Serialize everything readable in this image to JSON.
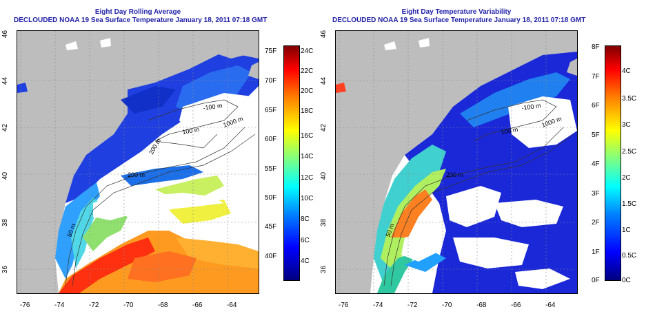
{
  "left_panel": {
    "title_line1": "Eight Day Rolling Average",
    "title_line2": "DECLOUDED NOAA 19 Sea Surface Temperature January 18, 2011 07:18 GMT",
    "x_ticks": [
      "-76",
      "-74",
      "-72",
      "-70",
      "-68",
      "-66",
      "-64"
    ],
    "y_ticks": [
      "36",
      "38",
      "40",
      "42",
      "44",
      "46"
    ],
    "contours": [
      "-100 m",
      "1000 m",
      "200 m",
      "100 m",
      "50 m",
      "200 m"
    ],
    "colorbar_F": [
      "75F",
      "70F",
      "65F",
      "60F",
      "55F",
      "50F",
      "45F",
      "40F"
    ],
    "colorbar_C": [
      "24C",
      "22C",
      "20C",
      "18C",
      "16C",
      "14C",
      "12C",
      "10C",
      "8C",
      "6C",
      "4C"
    ]
  },
  "right_panel": {
    "title_line1": "Eight Day Temperature Variability",
    "title_line2": "DECLOUDED NOAA 19 Sea Surface Temperature January 18, 2011 07:18 GMT",
    "x_ticks": [
      "-76",
      "-74",
      "-72",
      "-70",
      "-68",
      "-66",
      "-64"
    ],
    "y_ticks": [
      "36",
      "38",
      "40",
      "42",
      "44",
      "46"
    ],
    "contours": [
      "-100 m",
      "1000 m",
      "100 m",
      "200 m",
      "50 m"
    ],
    "colorbar_F": [
      "8F",
      "7F",
      "6F",
      "5F",
      "4F",
      "3F",
      "2F",
      "1F",
      "0F"
    ],
    "colorbar_C": [
      "4C",
      "3.5C",
      "3C",
      "2.5C",
      "2C",
      "1.5C",
      "1C",
      "0.5C",
      "0C"
    ]
  }
}
